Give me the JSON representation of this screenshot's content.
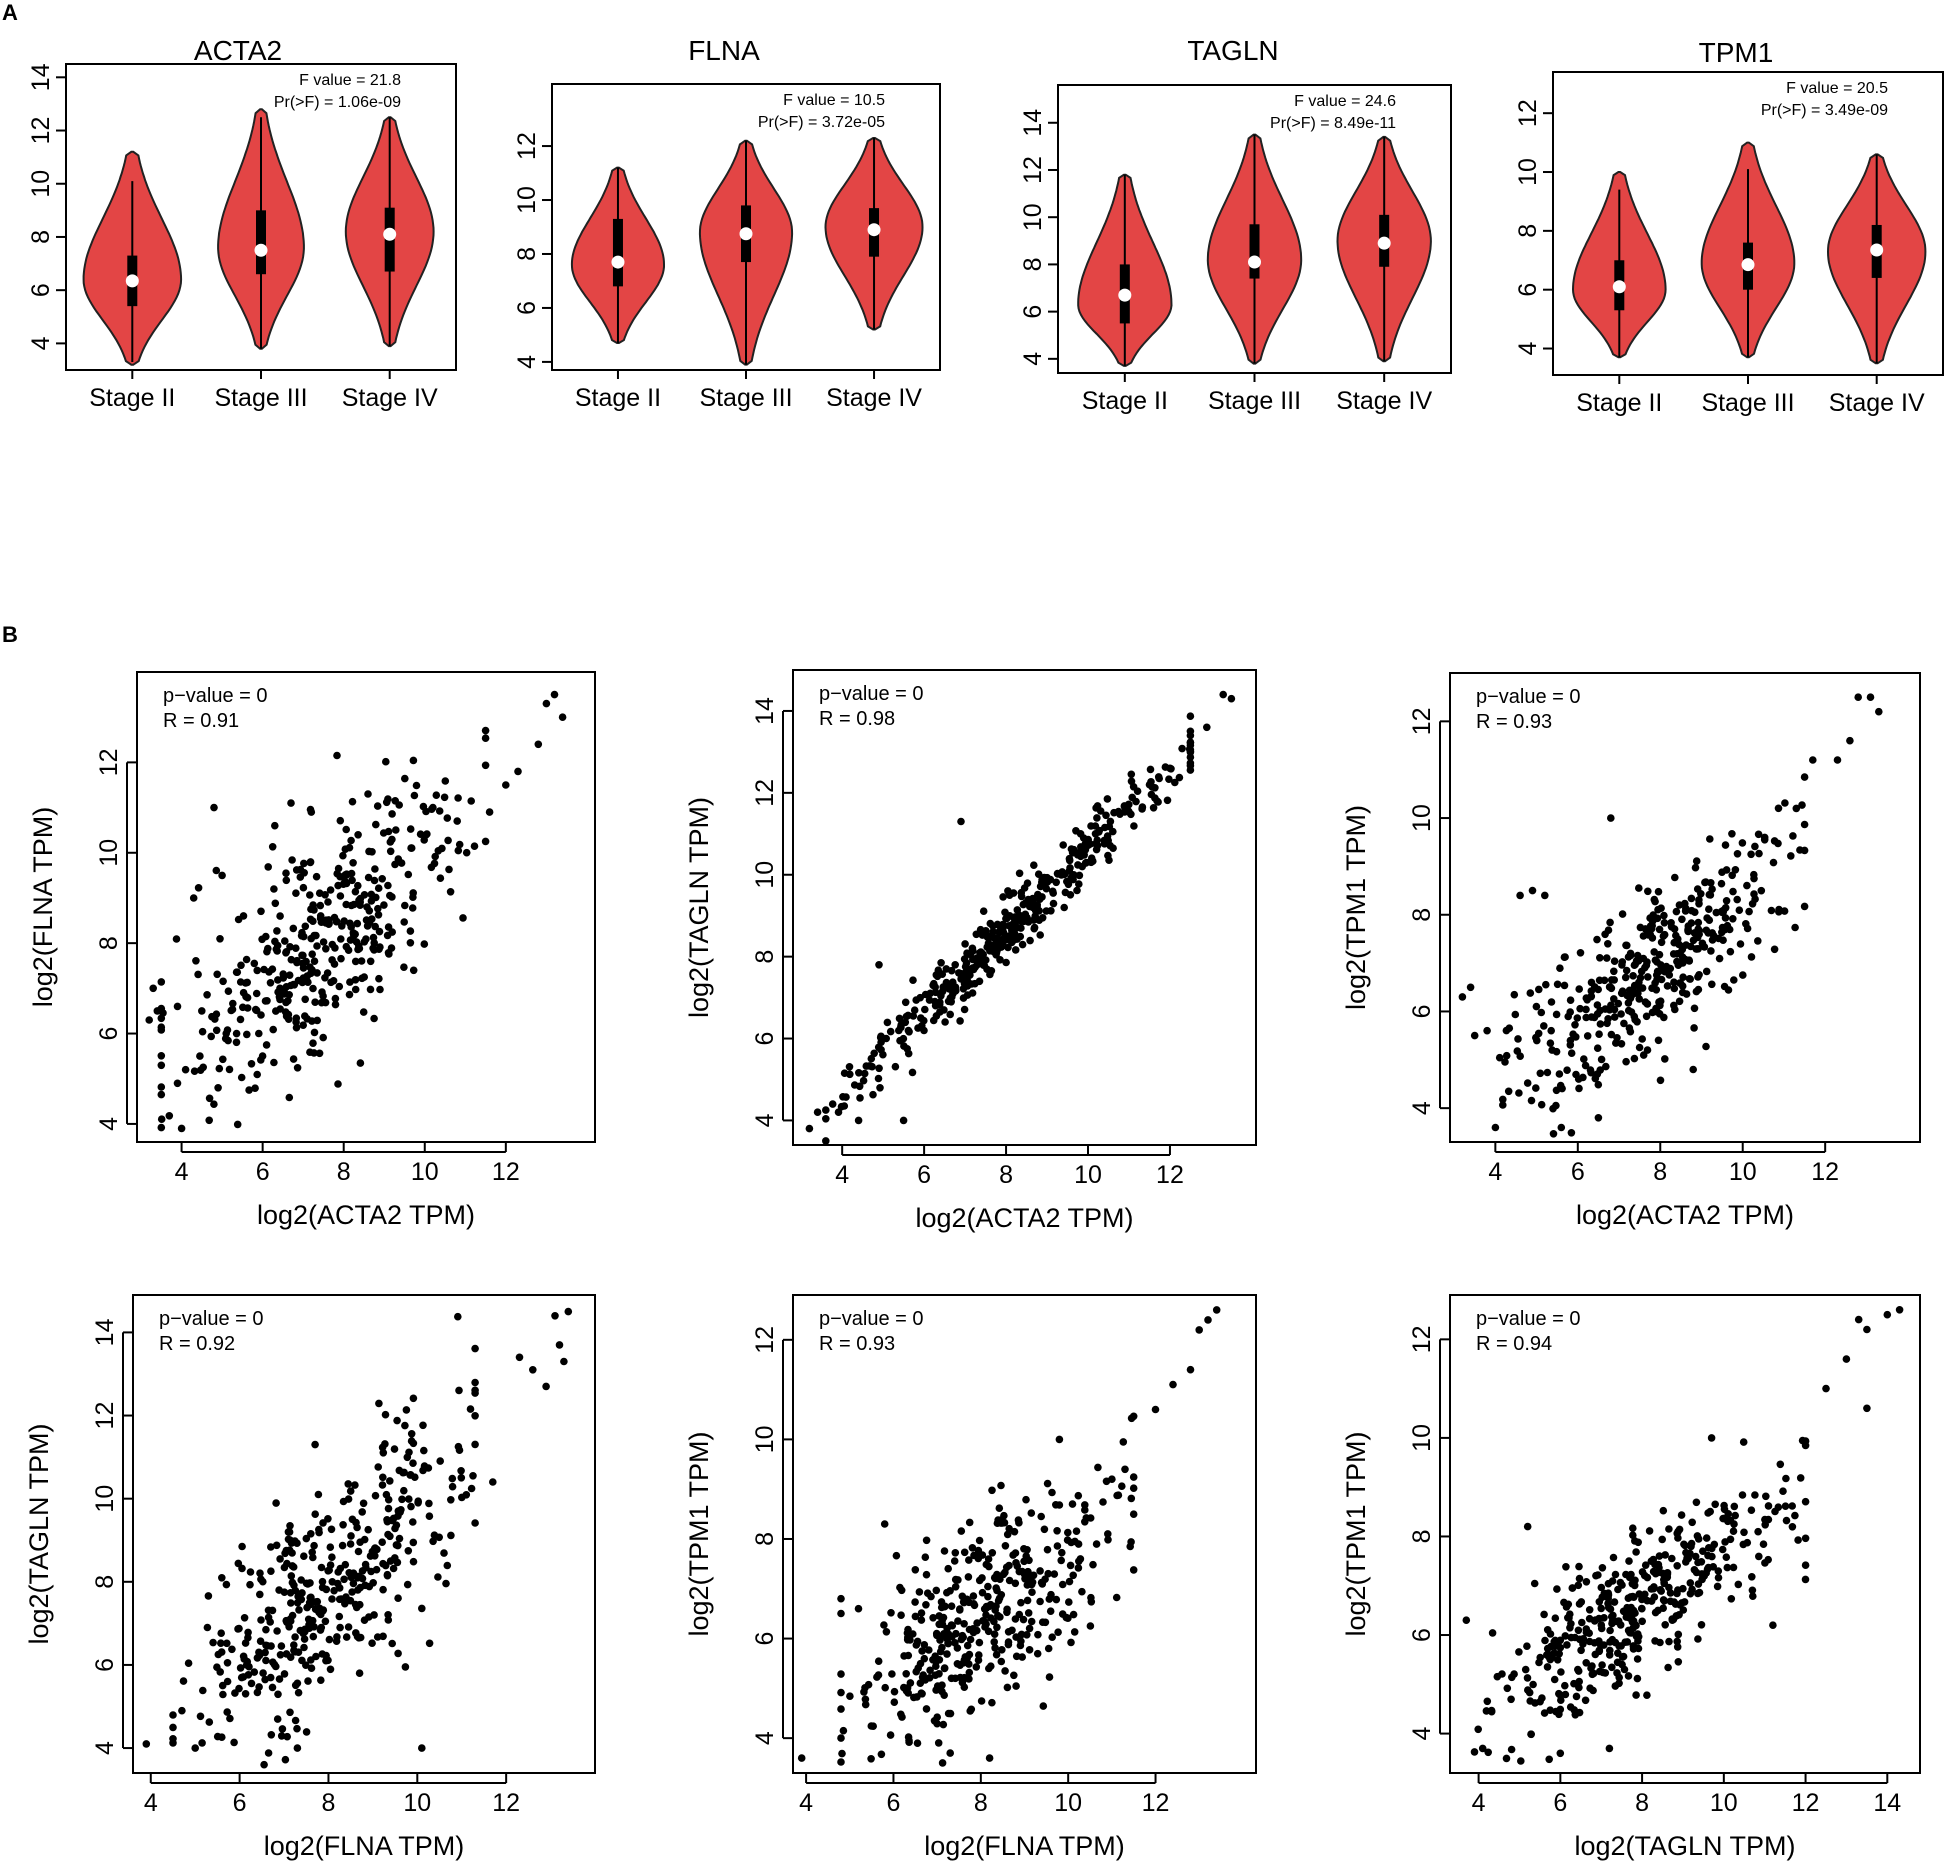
{
  "panel_labels": [
    "A",
    "B"
  ],
  "colors": {
    "violin_fill": "#e34545",
    "ink": "#000000",
    "median_dot": "#ffffff"
  },
  "chart_data": [
    {
      "type": "violin",
      "panel": "A",
      "title": "ACTA2",
      "ylim": [
        3,
        14.5
      ],
      "yticks": [
        4,
        6,
        8,
        10,
        12,
        14
      ],
      "categories": [
        "Stage II",
        "Stage III",
        "Stage IV"
      ],
      "annotation": [
        "F value = 21.8",
        "Pr(>F) = 1.06e-09"
      ],
      "groups": [
        {
          "name": "Stage II",
          "min": 3.2,
          "q1": 5.4,
          "median": 6.35,
          "q3": 7.3,
          "max": 11.2,
          "wlo": 3.3,
          "whi": 10.1,
          "mode": 6.4,
          "width": 1.0
        },
        {
          "name": "Stage III",
          "min": 3.8,
          "q1": 6.6,
          "median": 7.5,
          "q3": 9.0,
          "max": 12.8,
          "wlo": 3.8,
          "whi": 12.5,
          "mode": 7.6,
          "width": 0.88
        },
        {
          "name": "Stage IV",
          "min": 3.9,
          "q1": 6.7,
          "median": 8.1,
          "q3": 9.1,
          "max": 12.5,
          "wlo": 3.9,
          "whi": 12.5,
          "mode": 8.2,
          "width": 0.9
        }
      ]
    },
    {
      "type": "violin",
      "panel": "A",
      "title": "FLNA",
      "ylim": [
        3.7,
        14.3
      ],
      "yticks": [
        4,
        6,
        8,
        10,
        12
      ],
      "categories": [
        "Stage II",
        "Stage III",
        "Stage IV"
      ],
      "annotation": [
        "F value = 10.5",
        "Pr(>F) = 3.72e-05"
      ],
      "groups": [
        {
          "name": "Stage II",
          "min": 4.7,
          "q1": 6.8,
          "median": 7.7,
          "q3": 9.3,
          "max": 11.2,
          "wlo": 4.7,
          "whi": 11.2,
          "mode": 7.6,
          "width": 0.95
        },
        {
          "name": "Stage III",
          "min": 3.9,
          "q1": 7.7,
          "median": 8.75,
          "q3": 9.8,
          "max": 12.2,
          "wlo": 3.9,
          "whi": 12.2,
          "mode": 8.8,
          "width": 0.95
        },
        {
          "name": "Stage IV",
          "min": 5.2,
          "q1": 7.9,
          "median": 8.9,
          "q3": 9.7,
          "max": 12.3,
          "wlo": 5.2,
          "whi": 12.3,
          "mode": 9.0,
          "width": 1.0
        }
      ]
    },
    {
      "type": "violin",
      "panel": "A",
      "title": "TAGLN",
      "ylim": [
        3.4,
        15.6
      ],
      "yticks": [
        4,
        6,
        8,
        10,
        12,
        14
      ],
      "categories": [
        "Stage II",
        "Stage III",
        "Stage IV"
      ],
      "annotation": [
        "F value = 24.6",
        "Pr(>F) = 8.49e-11"
      ],
      "groups": [
        {
          "name": "Stage II",
          "min": 3.7,
          "q1": 5.5,
          "median": 6.7,
          "q3": 8.0,
          "max": 11.8,
          "wlo": 3.7,
          "whi": 11.8,
          "mode": 6.3,
          "width": 0.95
        },
        {
          "name": "Stage III",
          "min": 3.8,
          "q1": 7.4,
          "median": 8.1,
          "q3": 9.7,
          "max": 13.5,
          "wlo": 3.8,
          "whi": 13.5,
          "mode": 8.2,
          "width": 0.95
        },
        {
          "name": "Stage IV",
          "min": 3.9,
          "q1": 7.9,
          "median": 8.9,
          "q3": 10.1,
          "max": 13.4,
          "wlo": 3.9,
          "whi": 13.4,
          "mode": 9.0,
          "width": 0.95
        }
      ]
    },
    {
      "type": "violin",
      "panel": "A",
      "title": "TPM1",
      "ylim": [
        3.1,
        13.4
      ],
      "yticks": [
        4,
        6,
        8,
        10,
        12
      ],
      "categories": [
        "Stage II",
        "Stage III",
        "Stage IV"
      ],
      "annotation": [
        "F value = 20.5",
        "Pr(>F) = 3.49e-09"
      ],
      "groups": [
        {
          "name": "Stage II",
          "min": 3.7,
          "q1": 5.3,
          "median": 6.1,
          "q3": 7.0,
          "max": 10.0,
          "wlo": 3.7,
          "whi": 9.4,
          "mode": 6.0,
          "width": 0.95
        },
        {
          "name": "Stage III",
          "min": 3.7,
          "q1": 6.0,
          "median": 6.85,
          "q3": 7.6,
          "max": 11.0,
          "wlo": 3.7,
          "whi": 10.1,
          "mode": 6.9,
          "width": 0.95
        },
        {
          "name": "Stage IV",
          "min": 3.5,
          "q1": 6.4,
          "median": 7.35,
          "q3": 8.2,
          "max": 10.6,
          "wlo": 3.5,
          "whi": 10.6,
          "mode": 7.3,
          "width": 1.0
        }
      ]
    },
    {
      "type": "scatter",
      "panel": "B",
      "xlabel": "log2(ACTA2 TPM)",
      "ylabel": "log2(FLNA TPM)",
      "xlim": [
        2.9,
        14.2
      ],
      "ylim": [
        3.6,
        14.0
      ],
      "xticks": [
        4,
        6,
        8,
        10,
        12
      ],
      "yticks": [
        4,
        6,
        8,
        10,
        12
      ],
      "annotation": [
        "p−value = 0",
        "R = 0.91"
      ],
      "n_points": 430,
      "points": [
        [
          3.2,
          6.3
        ],
        [
          3.3,
          7.0
        ],
        [
          3.4,
          6.5
        ],
        [
          3.9,
          6.6
        ],
        [
          3.9,
          4.9
        ],
        [
          4.0,
          3.9
        ],
        [
          4.1,
          5.2
        ],
        [
          4.3,
          9.0
        ],
        [
          4.5,
          6.5
        ],
        [
          4.8,
          11.0
        ],
        [
          4.9,
          4.8
        ],
        [
          5.0,
          9.5
        ],
        [
          5.1,
          6.0
        ],
        [
          6.0,
          5.5
        ],
        [
          6.3,
          10.6
        ],
        [
          6.7,
          11.1
        ],
        [
          7.2,
          10.9
        ],
        [
          8.6,
          11.3
        ],
        [
          10.2,
          11.0
        ],
        [
          10.8,
          10.7
        ],
        [
          11.6,
          10.9
        ],
        [
          12.0,
          11.5
        ],
        [
          12.3,
          11.8
        ],
        [
          12.8,
          12.4
        ],
        [
          13.0,
          13.3
        ],
        [
          13.2,
          13.5
        ],
        [
          13.4,
          13.0
        ]
      ],
      "trend": {
        "slope": 0.72,
        "intercept": 2.6,
        "spread": 1.15,
        "xmin": 3.5,
        "xmax": 11.5
      }
    },
    {
      "type": "scatter",
      "panel": "B",
      "xlabel": "log2(ACTA2 TPM)",
      "ylabel": "log2(TAGLN TPM)",
      "xlim": [
        2.8,
        14.1
      ],
      "ylim": [
        3.4,
        15.0
      ],
      "xticks": [
        4,
        6,
        8,
        10,
        12
      ],
      "yticks": [
        4,
        6,
        8,
        10,
        12,
        14
      ],
      "annotation": [
        "p−value = 0",
        "R = 0.98"
      ],
      "n_points": 430,
      "points": [
        [
          3.2,
          3.8
        ],
        [
          3.4,
          4.2
        ],
        [
          4.4,
          4.0
        ],
        [
          4.9,
          7.8
        ],
        [
          5.5,
          4.0
        ],
        [
          6.9,
          11.3
        ],
        [
          12.5,
          13.4
        ],
        [
          12.9,
          13.6
        ],
        [
          13.3,
          14.4
        ],
        [
          13.5,
          14.3
        ],
        [
          12.0,
          12.6
        ],
        [
          11.5,
          12.2
        ]
      ],
      "trend": {
        "slope": 1.0,
        "intercept": 0.6,
        "spread": 0.38,
        "xmin": 3.6,
        "xmax": 12.5
      }
    },
    {
      "type": "scatter",
      "panel": "B",
      "xlabel": "log2(ACTA2 TPM)",
      "ylabel": "log2(TPM1 TPM)",
      "xlim": [
        2.9,
        14.3
      ],
      "ylim": [
        3.3,
        13.0
      ],
      "xticks": [
        4,
        6,
        8,
        10,
        12
      ],
      "yticks": [
        4,
        6,
        8,
        10,
        12
      ],
      "annotation": [
        "p−value = 0",
        "R = 0.93"
      ],
      "n_points": 430,
      "points": [
        [
          3.2,
          6.3
        ],
        [
          3.4,
          6.5
        ],
        [
          3.5,
          5.5
        ],
        [
          4.0,
          3.6
        ],
        [
          4.6,
          8.4
        ],
        [
          4.9,
          8.5
        ],
        [
          5.2,
          8.4
        ],
        [
          5.6,
          3.6
        ],
        [
          6.5,
          3.8
        ],
        [
          6.8,
          10.0
        ],
        [
          8.8,
          4.8
        ],
        [
          11.3,
          10.2
        ],
        [
          11.7,
          11.2
        ],
        [
          12.3,
          11.2
        ],
        [
          12.6,
          11.6
        ],
        [
          12.8,
          12.5
        ],
        [
          13.1,
          12.5
        ],
        [
          13.3,
          12.2
        ]
      ],
      "trend": {
        "slope": 0.6,
        "intercept": 2.2,
        "spread": 0.85,
        "xmin": 3.8,
        "xmax": 11.5
      }
    },
    {
      "type": "scatter",
      "panel": "B",
      "xlabel": "log2(FLNA TPM)",
      "ylabel": "log2(TAGLN TPM)",
      "xlim": [
        3.6,
        14.0
      ],
      "ylim": [
        3.4,
        14.9
      ],
      "xticks": [
        4,
        6,
        8,
        10,
        12
      ],
      "yticks": [
        4,
        6,
        8,
        10,
        12,
        14
      ],
      "annotation": [
        "p−value = 0",
        "R = 0.92"
      ],
      "n_points": 430,
      "points": [
        [
          3.9,
          4.1
        ],
        [
          4.7,
          4.9
        ],
        [
          5.0,
          4.0
        ],
        [
          7.3,
          4.0
        ],
        [
          7.7,
          11.3
        ],
        [
          10.1,
          4.0
        ],
        [
          11.7,
          10.4
        ],
        [
          12.3,
          13.4
        ],
        [
          12.6,
          13.1
        ],
        [
          12.9,
          12.7
        ],
        [
          13.1,
          14.4
        ],
        [
          13.3,
          13.3
        ],
        [
          13.4,
          14.5
        ],
        [
          13.2,
          13.7
        ]
      ],
      "trend": {
        "slope": 0.95,
        "intercept": 0.2,
        "spread": 1.3,
        "xmin": 4.5,
        "xmax": 11.3
      }
    },
    {
      "type": "scatter",
      "panel": "B",
      "xlabel": "log2(FLNA TPM)",
      "ylabel": "log2(TPM1 TPM)",
      "xlim": [
        3.7,
        14.3
      ],
      "ylim": [
        3.3,
        12.9
      ],
      "xticks": [
        4,
        6,
        8,
        10,
        12
      ],
      "yticks": [
        4,
        6,
        8,
        10,
        12
      ],
      "annotation": [
        "p−value = 0",
        "R = 0.93"
      ],
      "n_points": 430,
      "points": [
        [
          3.9,
          3.6
        ],
        [
          4.8,
          6.8
        ],
        [
          5.2,
          6.6
        ],
        [
          5.8,
          8.3
        ],
        [
          7.3,
          3.7
        ],
        [
          8.2,
          3.6
        ],
        [
          9.8,
          10.0
        ],
        [
          10.1,
          8.7
        ],
        [
          11.0,
          9.2
        ],
        [
          11.3,
          9.4
        ],
        [
          12.0,
          10.6
        ],
        [
          12.4,
          11.1
        ],
        [
          12.8,
          11.4
        ],
        [
          13.0,
          12.2
        ],
        [
          13.2,
          12.4
        ],
        [
          13.4,
          12.6
        ]
      ],
      "trend": {
        "slope": 0.6,
        "intercept": 1.6,
        "spread": 0.95,
        "xmin": 4.8,
        "xmax": 11.5
      }
    },
    {
      "type": "scatter",
      "panel": "B",
      "xlabel": "log2(TAGLN TPM)",
      "ylabel": "log2(TPM1 TPM)",
      "xlim": [
        3.3,
        14.8
      ],
      "ylim": [
        3.2,
        12.9
      ],
      "xticks": [
        4,
        6,
        8,
        10,
        12,
        14
      ],
      "yticks": [
        4,
        6,
        8,
        10,
        12
      ],
      "annotation": [
        "p−value = 0",
        "R = 0.94"
      ],
      "n_points": 430,
      "points": [
        [
          3.7,
          6.3
        ],
        [
          4.1,
          3.7
        ],
        [
          5.2,
          8.2
        ],
        [
          6.0,
          3.6
        ],
        [
          7.2,
          3.7
        ],
        [
          9.7,
          10.0
        ],
        [
          11.2,
          6.2
        ],
        [
          12.5,
          11.0
        ],
        [
          13.0,
          11.6
        ],
        [
          13.3,
          12.4
        ],
        [
          13.5,
          12.2
        ],
        [
          14.0,
          12.5
        ],
        [
          14.3,
          12.6
        ],
        [
          13.5,
          10.6
        ]
      ],
      "trend": {
        "slope": 0.58,
        "intercept": 2.0,
        "spread": 0.75,
        "xmin": 3.9,
        "xmax": 12.0
      }
    }
  ]
}
